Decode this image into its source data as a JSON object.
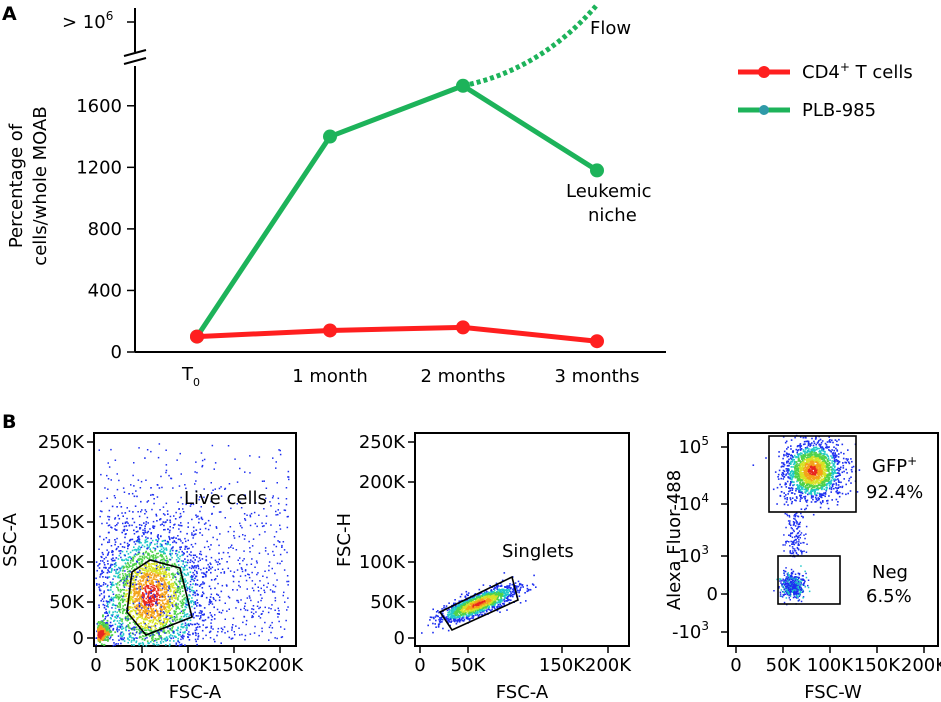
{
  "panel_a_letter": "A",
  "panel_b_letter": "B",
  "chart_data": [
    {
      "type": "line",
      "panel": "A",
      "categories": [
        "T0",
        "1 month",
        "2 months",
        "3 months"
      ],
      "category_labels": {
        "t0_main": "T",
        "t0_sub": "0"
      },
      "series": [
        {
          "name": "CD4+ T cells",
          "legend_main": "CD4",
          "legend_sup": "+",
          "legend_rest": " T cells",
          "color": "#ff1f1f",
          "values": [
            100,
            140,
            160,
            70
          ]
        },
        {
          "name": "PLB-985",
          "legend_main": "PLB-985",
          "color": "#1db35a",
          "marker_color": "#2f9aa8",
          "values": [
            100,
            1400,
            1730,
            1180
          ],
          "flow_extension": ">10^6"
        }
      ],
      "ylabel_line1": "Percentage of",
      "ylabel_line2": "cells/whole MOAB",
      "yticks": [
        "0",
        "400",
        "800",
        "1200",
        "1600"
      ],
      "ytick_values": [
        0,
        400,
        800,
        1200,
        1600
      ],
      "ylim": [
        0,
        1800
      ],
      "axis_break_label": "> 10",
      "axis_break_exp": "6",
      "annotations": {
        "flow": "Flow",
        "leukemic_1": "Leukemic",
        "leukemic_2": "niche"
      }
    },
    {
      "type": "scatter",
      "panel": "B1",
      "xlabel": "FSC-A",
      "ylabel": "SSC-A",
      "xticks": [
        "0",
        "50K",
        "100K",
        "150K",
        "200K"
      ],
      "yticks": [
        "0",
        "50K",
        "100K",
        "150K",
        "200K",
        "250K"
      ],
      "gate": "Live cells"
    },
    {
      "type": "scatter",
      "panel": "B2",
      "xlabel": "FSC-A",
      "ylabel": "FSC-H",
      "xticks": [
        "0",
        "50K",
        "150K",
        "200K"
      ],
      "yticks": [
        "0",
        "50K",
        "100K",
        "200K",
        "250K"
      ],
      "gate": "Singlets"
    },
    {
      "type": "scatter",
      "panel": "B3",
      "xlabel": "FSC-W",
      "ylabel": "Alexa Fluor-488",
      "xticks": [
        "0",
        "50K",
        "100K",
        "150K",
        "200K"
      ],
      "yticks": [
        {
          "base": "10",
          "exp": "5"
        },
        {
          "base": "10",
          "exp": "4"
        },
        {
          "base": "10",
          "exp": "3"
        },
        {
          "base": "0",
          "exp": ""
        },
        {
          "base": "-10",
          "exp": "3"
        }
      ],
      "gates": [
        {
          "name_main": "GFP",
          "name_sup": "+",
          "value": "92.4%"
        },
        {
          "name_main": "Neg",
          "name_sup": "",
          "value": "6.5%"
        }
      ]
    }
  ]
}
